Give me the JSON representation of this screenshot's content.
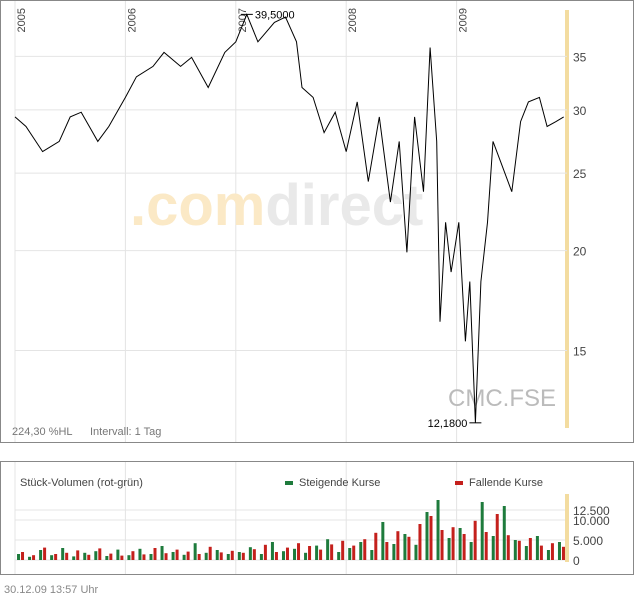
{
  "chart_data": [
    {
      "type": "line",
      "log_scale": true,
      "grid": true,
      "color": "#000000",
      "x": [
        2005.0,
        2005.1,
        2005.25,
        2005.4,
        2005.5,
        2005.6,
        2005.75,
        2005.85,
        2006.0,
        2006.1,
        2006.25,
        2006.35,
        2006.5,
        2006.6,
        2006.75,
        2006.9,
        2007.0,
        2007.1,
        2007.2,
        2007.35,
        2007.45,
        2007.55,
        2007.6,
        2007.7,
        2007.8,
        2007.9,
        2008.0,
        2008.1,
        2008.2,
        2008.3,
        2008.4,
        2008.48,
        2008.55,
        2008.62,
        2008.7,
        2008.76,
        2008.82,
        2008.85,
        2008.9,
        2008.95,
        2009.02,
        2009.08,
        2009.12,
        2009.17,
        2009.22,
        2009.28,
        2009.33,
        2009.4,
        2009.5,
        2009.58,
        2009.65,
        2009.75,
        2009.82,
        2009.9,
        2009.97
      ],
      "values": [
        29.4,
        28.6,
        26.6,
        27.4,
        29.4,
        29.8,
        27.4,
        28.6,
        31.1,
        33.0,
        34.0,
        35.4,
        34.0,
        34.9,
        32.0,
        35.4,
        36.5,
        39.5,
        36.5,
        38.6,
        39.2,
        36.5,
        32.0,
        31.1,
        28.1,
        29.8,
        26.6,
        30.7,
        24.4,
        29.4,
        23.0,
        27.4,
        19.9,
        29.4,
        23.7,
        35.9,
        27.4,
        16.3,
        21.7,
        18.8,
        21.7,
        15.4,
        18.3,
        12.18,
        18.3,
        21.7,
        27.4,
        25.8,
        23.7,
        29.0,
        30.7,
        31.1,
        28.6,
        29.0,
        29.4
      ],
      "xlim": [
        2005,
        2010
      ],
      "xticks": [
        2005,
        2006,
        2007,
        2008,
        2009
      ],
      "ylim": [
        12,
        40
      ],
      "yticks": [
        15,
        20,
        25,
        30,
        35
      ],
      "annotations": [
        {
          "x": 2007.1,
          "value": 39.5,
          "label": "39,5000"
        },
        {
          "x": 2009.17,
          "value": 12.18,
          "label": "12,1800"
        }
      ],
      "watermark": [
        ".com",
        "direct"
      ],
      "symbol": "CMC.FSE",
      "info": [
        "224,30 %HL",
        "Intervall: 1 Tag"
      ]
    },
    {
      "type": "bar",
      "title": "Stück-Volumen (rot-grün)",
      "x": [
        2005.05,
        2005.15,
        2005.25,
        2005.35,
        2005.45,
        2005.55,
        2005.65,
        2005.75,
        2005.85,
        2005.95,
        2006.05,
        2006.15,
        2006.25,
        2006.35,
        2006.45,
        2006.55,
        2006.65,
        2006.75,
        2006.85,
        2006.95,
        2007.05,
        2007.15,
        2007.25,
        2007.35,
        2007.45,
        2007.55,
        2007.65,
        2007.75,
        2007.85,
        2007.95,
        2008.05,
        2008.15,
        2008.25,
        2008.35,
        2008.45,
        2008.55,
        2008.65,
        2008.75,
        2008.85,
        2008.95,
        2009.05,
        2009.15,
        2009.25,
        2009.35,
        2009.45,
        2009.55,
        2009.65,
        2009.75,
        2009.85,
        2009.95
      ],
      "series": [
        {
          "name": "Steigende Kurse",
          "color": "#1e7b3c",
          "values": [
            1500,
            800,
            2500,
            1200,
            3000,
            900,
            1800,
            2200,
            1000,
            2600,
            1200,
            2800,
            1500,
            3500,
            2000,
            1300,
            4200,
            1800,
            2500,
            1500,
            2000,
            3200,
            1500,
            4500,
            2200,
            2800,
            1800,
            3600,
            5200,
            2000,
            3000,
            4500,
            2500,
            9500,
            4000,
            6500,
            3800,
            12000,
            15000,
            5500,
            8000,
            4500,
            14500,
            6000,
            13500,
            5000,
            3500,
            6000,
            2500,
            4500
          ]
        },
        {
          "name": "Fallende Kurse",
          "color": "#c4201c",
          "values": [
            2000,
            1200,
            3100,
            1500,
            1800,
            2400,
            1300,
            2900,
            1600,
            1100,
            2200,
            1400,
            3000,
            1700,
            2600,
            2100,
            1500,
            3300,
            1900,
            2300,
            1800,
            2700,
            3800,
            2000,
            3100,
            4200,
            3500,
            2600,
            3900,
            4800,
            3600,
            5200,
            6800,
            4500,
            7200,
            5800,
            9000,
            11000,
            7500,
            8200,
            6500,
            9800,
            7000,
            11500,
            6200,
            4800,
            5500,
            3600,
            4200,
            3300
          ]
        }
      ],
      "ylim": [
        0,
        16000
      ],
      "yticks": [
        0,
        {
          "value": 5000,
          "label": "5.000"
        },
        {
          "value": 10000,
          "label": "10.000"
        },
        {
          "value": 12500,
          "label": "12.500"
        }
      ]
    }
  ],
  "footer": "30.12.09   13:57 Uhr"
}
